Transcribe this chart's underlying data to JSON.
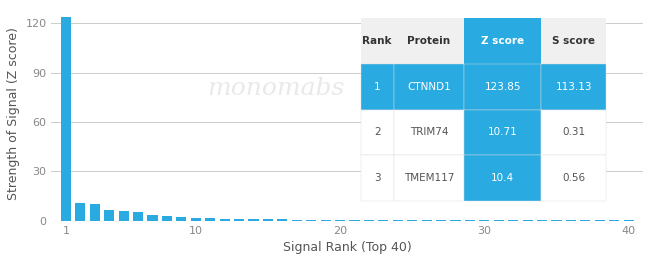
{
  "bar_color": "#29abe2",
  "bg_color": "#ffffff",
  "xlabel": "Signal Rank (Top 40)",
  "ylabel": "Strength of Signal (Z score)",
  "yticks": [
    0,
    30,
    60,
    90,
    120
  ],
  "xticks": [
    1,
    10,
    20,
    30,
    40
  ],
  "xlim": [
    0,
    41
  ],
  "ylim": [
    0,
    130
  ],
  "watermark": "monomabs",
  "watermark_color": "#dddddd",
  "bar_values": [
    123.85,
    10.71,
    10.4,
    6.2,
    5.8,
    5.5,
    3.5,
    2.8,
    2.2,
    1.9,
    1.5,
    1.3,
    1.1,
    0.9,
    0.8,
    0.7,
    0.65,
    0.6,
    0.55,
    0.5,
    0.48,
    0.45,
    0.42,
    0.4,
    0.38,
    0.36,
    0.34,
    0.32,
    0.3,
    0.28,
    0.26,
    0.25,
    0.24,
    0.23,
    0.22,
    0.21,
    0.2,
    0.19,
    0.18,
    0.17
  ],
  "table_headers": [
    "Rank",
    "Protein",
    "Z score",
    "S score"
  ],
  "table_header_bg": "#29abe2",
  "table_header_color": "#ffffff",
  "table_rows": [
    [
      "1",
      "CTNND1",
      "123.85",
      "113.13"
    ],
    [
      "2",
      "TRIM74",
      "10.71",
      "0.31"
    ],
    [
      "3",
      "TMEM117",
      "10.4",
      "0.56"
    ]
  ],
  "table_row1_bg": "#29abe2",
  "table_row1_color": "#ffffff",
  "table_other_bg": "#ffffff",
  "table_other_color": "#555555",
  "grid_color": "#cccccc",
  "axis_color": "#aaaaaa"
}
